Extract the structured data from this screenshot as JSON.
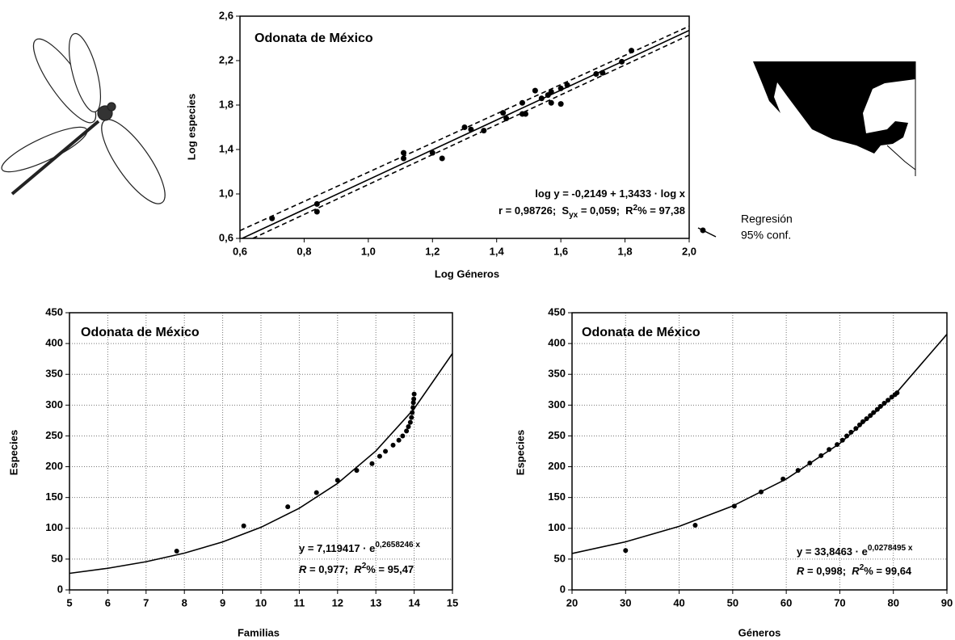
{
  "chart_data": [
    {
      "type": "scatter",
      "title": "Odonata de México",
      "x_label": "Log Géneros",
      "y_label": "Log especies",
      "xlim": [
        0.6,
        2.0
      ],
      "ylim": [
        0.6,
        2.6
      ],
      "grid": false,
      "xticks": [
        {
          "value": 0.6,
          "label": "0,6"
        },
        {
          "value": 0.8,
          "label": "0,8"
        },
        {
          "value": 1.0,
          "label": "1,0"
        },
        {
          "value": 1.2,
          "label": "1,2"
        },
        {
          "value": 1.4,
          "label": "1,4"
        },
        {
          "value": 1.6,
          "label": "1,6"
        },
        {
          "value": 1.8,
          "label": "1,8"
        },
        {
          "value": 2.0,
          "label": "2,0"
        }
      ],
      "yticks": [
        {
          "value": 0.6,
          "label": "0,6"
        },
        {
          "value": 1.0,
          "label": "1,0"
        },
        {
          "value": 1.4,
          "label": "1,4"
        },
        {
          "value": 1.8,
          "label": "1,8"
        },
        {
          "value": 2.2,
          "label": "2,2"
        },
        {
          "value": 2.6,
          "label": "2,6"
        }
      ],
      "annotations": [
        [
          "log y = -0,2149 + 1,3433 · log x"
        ],
        [
          "r = 0,98726;  S",
          "yx",
          " = 0,059;  R",
          "2",
          "% = 97,38"
        ]
      ],
      "series": [
        {
          "mode": "markers",
          "color": "#000000",
          "x": [
            0.7,
            0.84,
            0.84,
            1.11,
            1.11,
            1.2,
            1.23,
            1.3,
            1.32,
            1.36,
            1.42,
            1.43,
            1.48,
            1.48,
            1.49,
            1.52,
            1.54,
            1.56,
            1.57,
            1.57,
            1.6,
            1.6,
            1.62,
            1.71,
            1.73,
            1.79,
            1.82
          ],
          "values": [
            0.78,
            0.91,
            0.84,
            1.37,
            1.32,
            1.37,
            1.32,
            1.6,
            1.58,
            1.57,
            1.73,
            1.68,
            1.82,
            1.72,
            1.72,
            1.93,
            1.86,
            1.89,
            1.92,
            1.82,
            1.95,
            1.81,
            1.98,
            2.08,
            2.09,
            2.19,
            2.29
          ]
        },
        {
          "name": "Regresión",
          "mode": "line",
          "color": "#000000",
          "x": [
            0.6,
            2.0
          ],
          "values": [
            0.5911,
            2.4717
          ]
        },
        {
          "name": "95% conf.",
          "mode": "dashed",
          "color": "#000000",
          "x": [
            0.6,
            2.0
          ],
          "values": [
            0.67,
            2.51
          ]
        },
        {
          "mode": "dashed",
          "color": "#000000",
          "x": [
            0.64,
            2.0
          ],
          "values": [
            0.6,
            2.43
          ]
        }
      ]
    },
    {
      "type": "scatter",
      "title": "Odonata de México",
      "x_label": "Familias",
      "y_label": "Especies",
      "xlim": [
        5,
        15
      ],
      "ylim": [
        0,
        450
      ],
      "grid": true,
      "xticks": [
        5,
        6,
        7,
        8,
        9,
        10,
        11,
        12,
        13,
        14,
        15
      ],
      "yticks": [
        0,
        50,
        100,
        150,
        200,
        250,
        300,
        350,
        400,
        450
      ],
      "annotations": [
        [
          "y = 7,119417 · e",
          "0,2658246 x"
        ],
        [
          "R",
          " = 0,977;  ",
          "R",
          "2",
          "% = 95,47"
        ]
      ],
      "series": [
        {
          "mode": "markers",
          "color": "#000000",
          "x": [
            7.8,
            9.55,
            10.7,
            11.45,
            12.0,
            12.5,
            12.9,
            13.1,
            13.25,
            13.45,
            13.6,
            13.7,
            13.8,
            13.85,
            13.9,
            13.93,
            13.95,
            13.97,
            13.98,
            13.99,
            14.0
          ],
          "values": [
            63,
            104,
            135,
            158,
            178,
            194,
            205,
            217,
            225,
            235,
            243,
            250,
            258,
            265,
            272,
            280,
            288,
            296,
            304,
            310,
            318
          ]
        },
        {
          "mode": "line",
          "color": "#000000",
          "x": [
            5,
            6,
            7,
            8,
            9,
            10,
            11,
            12,
            13,
            14,
            15
          ],
          "values": [
            26.89,
            35.09,
            45.77,
            59.71,
            77.89,
            101.61,
            132.55,
            172.91,
            225.55,
            294.2,
            383.8
          ]
        }
      ]
    },
    {
      "type": "scatter",
      "title": "Odonata de México",
      "x_label": "Géneros",
      "y_label": "Especies",
      "xlim": [
        20,
        90
      ],
      "ylim": [
        0,
        450
      ],
      "grid": true,
      "xticks": [
        20,
        30,
        40,
        50,
        60,
        70,
        80,
        90
      ],
      "yticks": [
        0,
        50,
        100,
        150,
        200,
        250,
        300,
        350,
        400,
        450
      ],
      "annotations": [
        [
          "y = 33,8463 · e",
          "0,0278495 x"
        ],
        [
          "R",
          " = 0,998;  ",
          "R",
          "2",
          "% = 99,64"
        ]
      ],
      "series": [
        {
          "mode": "markers",
          "color": "#000000",
          "x": [
            30,
            43,
            50.3,
            55.3,
            59.4,
            62.2,
            64.4,
            66.5,
            68,
            69.5,
            70.5,
            71.3,
            72.1,
            73,
            73.7,
            74.3,
            75,
            75.7,
            76.3,
            77,
            77.6,
            78.3,
            79,
            79.7,
            80.3,
            80.7
          ],
          "values": [
            64,
            105,
            136,
            159,
            180,
            194,
            206,
            218,
            228,
            236,
            243,
            250,
            256,
            262,
            268,
            273,
            278,
            283,
            288,
            293,
            298,
            303,
            308,
            313,
            317,
            320
          ]
        },
        {
          "mode": "line",
          "color": "#000000",
          "x": [
            20,
            30,
            40,
            50,
            60,
            70,
            80,
            90
          ],
          "values": [
            59.08,
            78.05,
            103.11,
            136.23,
            179.97,
            237.78,
            314.13,
            415.0
          ]
        }
      ]
    }
  ]
}
